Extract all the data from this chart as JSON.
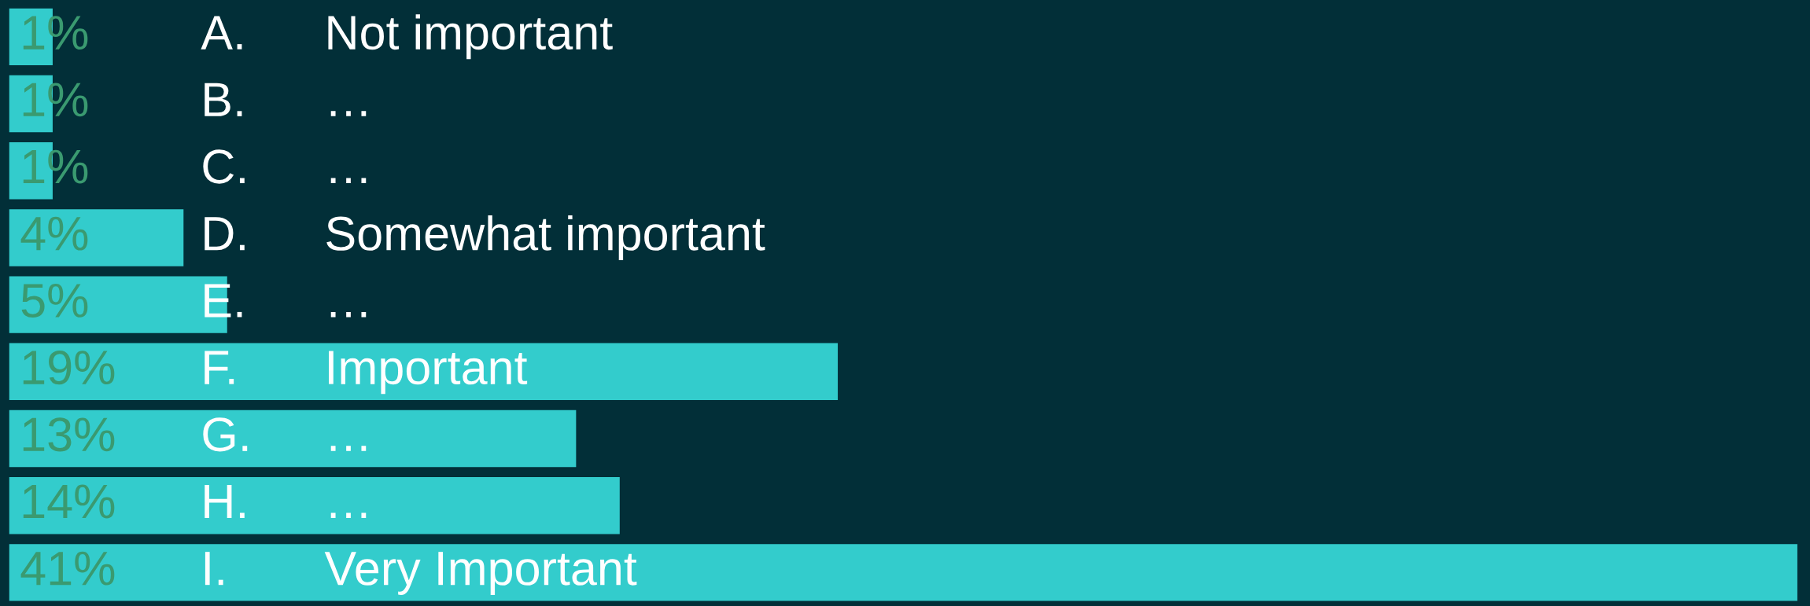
{
  "chart_data": {
    "type": "bar",
    "orientation": "horizontal",
    "categories": [
      "A. Not important",
      "B. …",
      "C. …",
      "D. Somewhat important",
      "E. …",
      "F. Important",
      "G. …",
      "H. …",
      "I. Very Important"
    ],
    "values": [
      1,
      1,
      1,
      4,
      5,
      19,
      13,
      14,
      41
    ],
    "value_labels": [
      "1%",
      "1%",
      "1%",
      "4%",
      "5%",
      "19%",
      "13%",
      "14%",
      "41%"
    ],
    "color": "#33cccc",
    "legend": false
  }
}
